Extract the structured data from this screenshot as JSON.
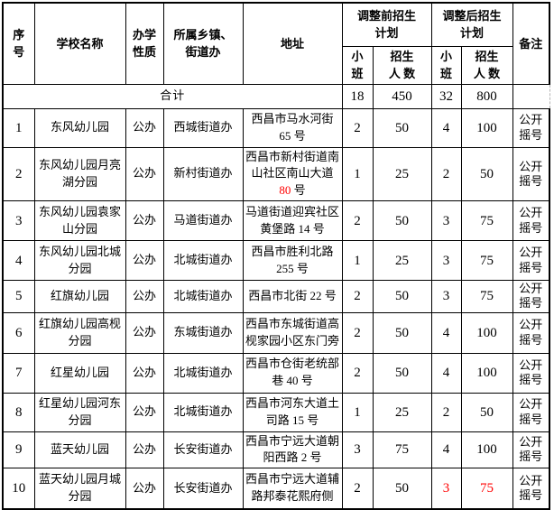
{
  "colors": {
    "highlight_red": "#ff0000",
    "border_black": "#000000",
    "dashed_gray": "#b5b5b5"
  },
  "table": {
    "headers": {
      "serial": "序\n号",
      "school": "学校名称",
      "nature": "办学\n性质",
      "township": "所属乡镇、\n街道办",
      "address": "地址",
      "before_group": "调整前招生\n计划",
      "after_group": "调整后招生\n计划",
      "small_class": "小\n班",
      "enroll_count": "招生\n人 数",
      "remark": "备注"
    },
    "total_row": {
      "label": "合计",
      "before_classes": "18",
      "before_students": "450",
      "after_classes": "32",
      "after_students": "800",
      "remark": ""
    },
    "rows": [
      {
        "no": "1",
        "school": "东风幼儿园",
        "nature": "公办",
        "township": "西城街道办",
        "address": "西昌市马水河街 65 号",
        "before_classes": "2",
        "before_students": "50",
        "after_classes": "4",
        "after_students": "100",
        "remark": "公开摇号"
      },
      {
        "no": "2",
        "school": "东风幼儿园月亮湖分园",
        "nature": "公办",
        "township": "新村街道办",
        "address_parts": [
          {
            "text": "西昌市新村街道南山社区南山大道 "
          },
          {
            "text": "80",
            "color": "#ff0000"
          },
          {
            "text": " 号"
          }
        ],
        "before_classes": "1",
        "before_students": "25",
        "after_classes": "2",
        "after_students": "50",
        "remark": "公开摇号"
      },
      {
        "no": "3",
        "school": "东风幼儿园袁家山分园",
        "nature": "公办",
        "township": "马道街道办",
        "address": "马道街道迎宾社区黄堡路 14 号",
        "before_classes": "2",
        "before_students": "50",
        "after_classes": "3",
        "after_students": "75",
        "remark": "公开摇号"
      },
      {
        "no": "4",
        "school": "东风幼儿园北城分园",
        "nature": "公办",
        "township": "北城街道办",
        "address": "西昌市胜利北路 255 号",
        "before_classes": "1",
        "before_students": "25",
        "after_classes": "3",
        "after_students": "75",
        "remark": "公开摇号"
      },
      {
        "no": "5",
        "school": "红旗幼儿园",
        "nature": "公办",
        "township": "北城街道办",
        "address": "西昌市北街 22 号",
        "before_classes": "2",
        "before_students": "50",
        "after_classes": "3",
        "after_students": "75",
        "remark": "公开摇号"
      },
      {
        "no": "6",
        "school": "红旗幼儿园高枧分园",
        "nature": "公办",
        "township": "东城街道办",
        "address": "西昌市东城街道高枧家园小区东门旁",
        "before_classes": "2",
        "before_students": "50",
        "after_classes": "4",
        "after_students": "100",
        "remark": "公开摇号"
      },
      {
        "no": "7",
        "school": "红星幼儿园",
        "nature": "公办",
        "township": "北城街道办",
        "address": "西昌市仓街老统部巷 40 号",
        "before_classes": "2",
        "before_students": "50",
        "after_classes": "4",
        "after_students": "100",
        "remark": "公开摇号"
      },
      {
        "no": "8",
        "school": "红星幼儿园河东分园",
        "nature": "公办",
        "township": "北城街道办",
        "address": "西昌市河东大道土司路 15 号",
        "before_classes": "1",
        "before_students": "25",
        "after_classes": "2",
        "after_students": "50",
        "remark": "公开摇号"
      },
      {
        "no": "9",
        "school": "蓝天幼儿园",
        "nature": "公办",
        "township": "长安街道办",
        "address": "西昌市宁远大道朝阳西路 2 号",
        "before_classes": "3",
        "before_students": "75",
        "after_classes": "4",
        "after_students": "100",
        "remark": "公开摇号"
      },
      {
        "no": "10",
        "school": "蓝天幼儿园月城分园",
        "nature": "公办",
        "township": "长安街道办",
        "address": "西昌市宁远大道辅路邦泰花熙府侧",
        "before_classes": "2",
        "before_students": "50",
        "after_classes_parts": [
          {
            "text": "3",
            "color": "#ff0000"
          }
        ],
        "after_students_parts": [
          {
            "text": "75",
            "color": "#ff0000"
          }
        ],
        "remark": "公开摇号"
      }
    ]
  }
}
